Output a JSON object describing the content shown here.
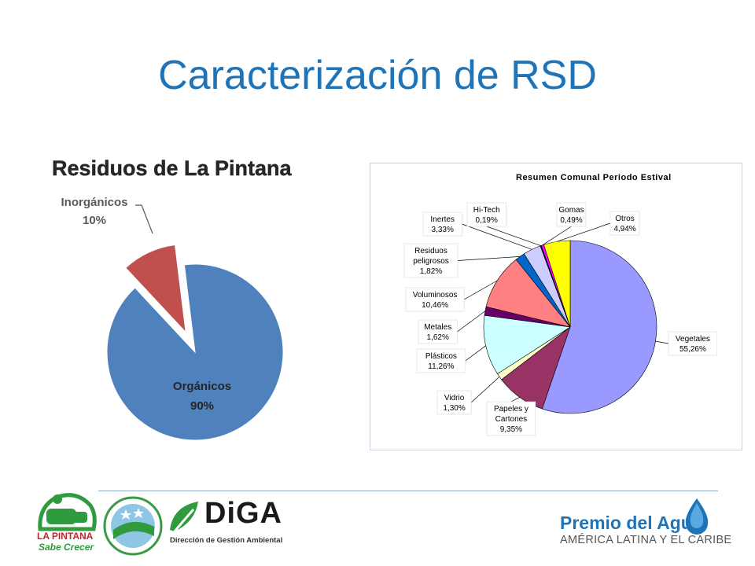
{
  "slide": {
    "title": "Caracterización de RSD"
  },
  "chart_data": [
    {
      "type": "pie",
      "title": "Residuos de La Pintana",
      "slices": [
        {
          "label": "Orgánicos",
          "value_label": "90%",
          "value": 90,
          "color": "#4f81bd",
          "exploded": false
        },
        {
          "label": "Inorgánicos",
          "value_label": "10%",
          "value": 10,
          "color": "#c0504d",
          "exploded": true
        }
      ]
    },
    {
      "type": "pie",
      "title": "Resumen Comunal Periodo Estival",
      "slices": [
        {
          "label": "Vegetales",
          "value_label": "55,26%",
          "value": 55.26,
          "color": "#9999ff"
        },
        {
          "label": "Papeles y Cartones",
          "value_label": "9,35%",
          "value": 9.35,
          "color": "#993366"
        },
        {
          "label": "Vidrio",
          "value_label": "1,30%",
          "value": 1.3,
          "color": "#ffffcc"
        },
        {
          "label": "Plásticos",
          "value_label": "11,26%",
          "value": 11.26,
          "color": "#ccffff"
        },
        {
          "label": "Metales",
          "value_label": "1,62%",
          "value": 1.62,
          "color": "#660066"
        },
        {
          "label": "Voluminosos",
          "value_label": "10,46%",
          "value": 10.46,
          "color": "#ff8080"
        },
        {
          "label": "Residuos peligrosos",
          "value_label": "1,82%",
          "value": 1.82,
          "color": "#0066cc"
        },
        {
          "label": "Inertes",
          "value_label": "3,33%",
          "value": 3.33,
          "color": "#ccccff"
        },
        {
          "label": "Hi-Tech",
          "value_label": "0,19%",
          "value": 0.19,
          "color": "#000080"
        },
        {
          "label": "Gomas",
          "value_label": "0,49%",
          "value": 0.49,
          "color": "#ff00ff"
        },
        {
          "label": "Otros",
          "value_label": "4,94%",
          "value": 4.94,
          "color": "#ffff00"
        }
      ]
    }
  ],
  "footer": {
    "logo_lapintana": {
      "name": "LA PINTANA",
      "tagline": "Sabe Crecer"
    },
    "logo_diga": {
      "name": "DiGA",
      "subtitle": "Dirección de Gestión Ambiental"
    },
    "logo_premio": {
      "line1": "Premio del Agua",
      "line2": "AMÉRICA LATINA Y EL CARIBE"
    }
  }
}
